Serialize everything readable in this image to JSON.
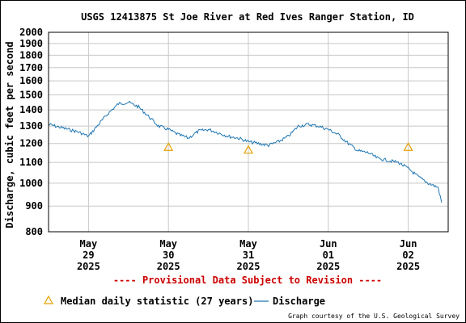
{
  "chart_data": {
    "type": "line",
    "title": "USGS 12413875 St Joe River at Red Ives Ranger Station, ID",
    "ylabel": "Discharge, cubic feet per second",
    "y_scale": "log",
    "ylim": [
      800,
      2000
    ],
    "y_ticks": [
      800,
      900,
      1000,
      1100,
      1200,
      1300,
      1400,
      1500,
      1600,
      1700,
      1800,
      1900,
      2000
    ],
    "y_tick_labels": [
      "800",
      "900",
      "1000",
      "1100",
      "1200",
      "1300",
      "1400",
      "1500",
      "1600",
      "1700",
      "1800",
      "1900",
      "2000"
    ],
    "xlim": [
      "2025-05-28T12:00",
      "2025-06-02T12:00"
    ],
    "x_ticks": [
      {
        "date": "2025-05-29",
        "month": "May",
        "day": "29",
        "year": "2025"
      },
      {
        "date": "2025-05-30",
        "month": "May",
        "day": "30",
        "year": "2025"
      },
      {
        "date": "2025-05-31",
        "month": "May",
        "day": "31",
        "year": "2025"
      },
      {
        "date": "2025-06-01",
        "month": "Jun",
        "day": "01",
        "year": "2025"
      },
      {
        "date": "2025-06-02",
        "month": "Jun",
        "day": "02",
        "year": "2025"
      }
    ],
    "grid": true,
    "series": [
      {
        "name": "Discharge",
        "color": "#1f77b4",
        "x": [
          "2025-05-28T12:00",
          "2025-05-28T15:00",
          "2025-05-28T18:00",
          "2025-05-28T21:00",
          "2025-05-29T00:00",
          "2025-05-29T03:00",
          "2025-05-29T06:00",
          "2025-05-29T09:00",
          "2025-05-29T12:00",
          "2025-05-29T15:00",
          "2025-05-29T18:00",
          "2025-05-29T21:00",
          "2025-05-30T00:00",
          "2025-05-30T03:00",
          "2025-05-30T06:00",
          "2025-05-30T09:00",
          "2025-05-30T12:00",
          "2025-05-30T15:00",
          "2025-05-30T18:00",
          "2025-05-30T21:00",
          "2025-05-31T00:00",
          "2025-05-31T03:00",
          "2025-05-31T06:00",
          "2025-05-31T09:00",
          "2025-05-31T12:00",
          "2025-05-31T15:00",
          "2025-05-31T18:00",
          "2025-05-31T21:00",
          "2025-06-01T00:00",
          "2025-06-01T03:00",
          "2025-06-01T06:00",
          "2025-06-01T09:00",
          "2025-06-01T12:00",
          "2025-06-01T15:00",
          "2025-06-01T18:00",
          "2025-06-01T21:00",
          "2025-06-02T00:00",
          "2025-06-02T03:00",
          "2025-06-02T06:00",
          "2025-06-02T09:00",
          "2025-06-02T10:00"
        ],
        "values": [
          1310,
          1295,
          1280,
          1265,
          1240,
          1310,
          1380,
          1440,
          1450,
          1420,
          1360,
          1300,
          1280,
          1250,
          1230,
          1270,
          1280,
          1260,
          1240,
          1230,
          1210,
          1200,
          1190,
          1210,
          1240,
          1300,
          1310,
          1300,
          1280,
          1250,
          1200,
          1160,
          1150,
          1120,
          1110,
          1100,
          1070,
          1030,
          1000,
          980,
          915
        ]
      }
    ],
    "markers": {
      "name": "Median daily statistic (27 years)",
      "color": "#e6a100",
      "x": [
        "2025-05-30T00:00",
        "2025-05-31T00:00",
        "2025-06-02T00:00"
      ],
      "values": [
        1180,
        1165,
        1180
      ]
    },
    "annotation": "---- Provisional Data Subject to Revision ----",
    "annotation_color": "#cc0000",
    "legend": {
      "placement": "bottom",
      "entries": [
        "Median daily statistic (27 years)",
        "Discharge"
      ]
    },
    "credit": "Graph courtesy of the U.S. Geological Survey"
  }
}
